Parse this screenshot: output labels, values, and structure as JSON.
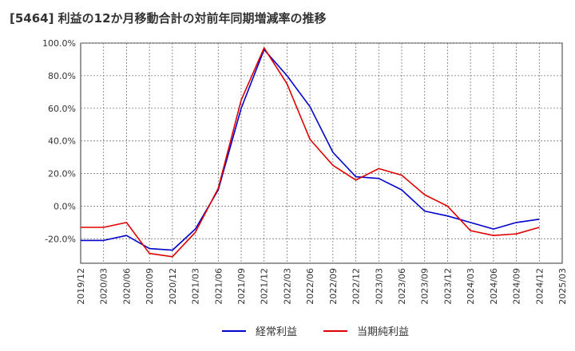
{
  "chart_data": {
    "type": "line",
    "title": "[5464]  利益の12か月移動合計の対前年同期増減率の推移",
    "xlabel": "",
    "ylabel": "",
    "ylim": [
      -35,
      100
    ],
    "y_ticks": [
      "100.0%",
      "80.0%",
      "60.0%",
      "40.0%",
      "20.0%",
      "0.0%",
      "-20.0%"
    ],
    "y_tick_values": [
      100,
      80,
      60,
      40,
      20,
      0,
      -20
    ],
    "x_ticks": [
      "2019/12",
      "2020/03",
      "2020/06",
      "2020/09",
      "2020/12",
      "2021/03",
      "2021/06",
      "2021/09",
      "2021/12",
      "2022/03",
      "2022/06",
      "2022/09",
      "2022/12",
      "2023/03",
      "2023/06",
      "2023/09",
      "2023/12",
      "2024/03",
      "2024/06",
      "2024/09",
      "2024/12",
      "2025/03"
    ],
    "grid": true,
    "legend_position": "bottom",
    "series": [
      {
        "name": "経常利益",
        "color": "#0000cc",
        "values": [
          -21,
          -21,
          -18,
          -26,
          -27,
          -14,
          10,
          60,
          96,
          80,
          61,
          33,
          18,
          17,
          10,
          -3,
          -6,
          -10,
          -14,
          -10,
          -8
        ]
      },
      {
        "name": "当期純利益",
        "color": "#dd0000",
        "values": [
          -13,
          -13,
          -10,
          -29,
          -31,
          -16,
          11,
          65,
          97,
          75,
          41,
          25,
          16,
          23,
          19,
          7,
          0,
          -15,
          -18,
          -17,
          -13
        ]
      }
    ]
  }
}
